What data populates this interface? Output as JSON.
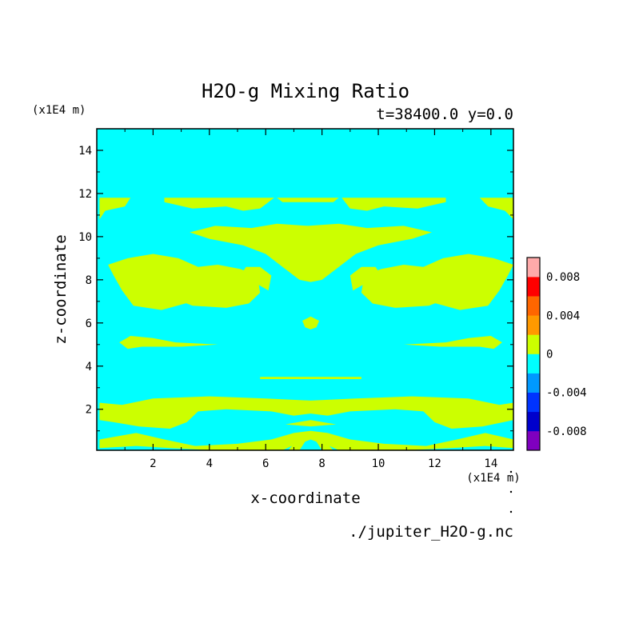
{
  "chart_data": {
    "type": "heatmap",
    "title": "H2O-g Mixing Ratio",
    "subtitle": "t=38400.0 y=0.0",
    "xlabel": "x-coordinate",
    "ylabel": "z-coordinate",
    "x_unit": "(x1E4 m)",
    "y_unit": "(x1E4 m)",
    "source": "./jupiter_H2O-g.nc",
    "xlim": [
      0,
      14.8
    ],
    "ylim": [
      0.1,
      15
    ],
    "x_ticks": [
      2,
      4,
      6,
      8,
      10,
      12,
      14
    ],
    "y_ticks": [
      2,
      4,
      6,
      8,
      10,
      12,
      14
    ],
    "background_level": {
      "range": [
        -0.002,
        0
      ],
      "color": "#00ffff"
    },
    "feature_level": {
      "range": [
        0,
        0.002
      ],
      "color": "#ccff00"
    },
    "regions": [
      {
        "name": "upper-band",
        "polygon": [
          [
            0.1,
            11.8
          ],
          [
            1.2,
            11.8
          ],
          [
            1.0,
            11.4
          ],
          [
            0.3,
            11.2
          ],
          [
            0.1,
            10.8
          ]
        ]
      },
      {
        "name": "upper-band",
        "polygon": [
          [
            2.4,
            11.8
          ],
          [
            6.3,
            11.8
          ],
          [
            5.8,
            11.3
          ],
          [
            5.2,
            11.2
          ],
          [
            4.6,
            11.4
          ],
          [
            3.4,
            11.3
          ],
          [
            2.4,
            11.6
          ]
        ]
      },
      {
        "name": "upper-band",
        "polygon": [
          [
            6.4,
            11.8
          ],
          [
            8.6,
            11.8
          ],
          [
            8.4,
            11.6
          ],
          [
            6.6,
            11.6
          ]
        ]
      },
      {
        "name": "upper-band",
        "polygon": [
          [
            8.7,
            11.8
          ],
          [
            12.4,
            11.8
          ],
          [
            12.4,
            11.6
          ],
          [
            11.4,
            11.3
          ],
          [
            10.2,
            11.4
          ],
          [
            9.6,
            11.2
          ],
          [
            9.0,
            11.3
          ]
        ]
      },
      {
        "name": "upper-band",
        "polygon": [
          [
            13.6,
            11.8
          ],
          [
            14.8,
            11.8
          ],
          [
            14.8,
            10.8
          ],
          [
            14.5,
            11.2
          ],
          [
            13.9,
            11.4
          ]
        ]
      },
      {
        "name": "mid-upper",
        "polygon": [
          [
            3.3,
            10.2
          ],
          [
            4.2,
            10.5
          ],
          [
            5.5,
            10.4
          ],
          [
            6.4,
            10.6
          ],
          [
            7.5,
            10.5
          ],
          [
            8.6,
            10.6
          ],
          [
            9.6,
            10.4
          ],
          [
            10.9,
            10.5
          ],
          [
            11.9,
            10.2
          ],
          [
            11.2,
            9.9
          ],
          [
            10.0,
            9.6
          ],
          [
            9.2,
            9.2
          ],
          [
            8.6,
            8.6
          ],
          [
            8.0,
            8.0
          ],
          [
            7.6,
            7.9
          ],
          [
            7.2,
            8.0
          ],
          [
            6.6,
            8.6
          ],
          [
            6.0,
            9.2
          ],
          [
            5.2,
            9.6
          ],
          [
            4.0,
            9.9
          ]
        ]
      },
      {
        "name": "left-blob",
        "polygon": [
          [
            0.4,
            8.7
          ],
          [
            1.1,
            9.0
          ],
          [
            2.0,
            9.2
          ],
          [
            2.9,
            9.0
          ],
          [
            3.6,
            8.6
          ],
          [
            4.3,
            8.7
          ],
          [
            5.1,
            8.5
          ],
          [
            5.7,
            8.2
          ],
          [
            5.8,
            7.4
          ],
          [
            5.4,
            6.9
          ],
          [
            4.6,
            6.7
          ],
          [
            3.4,
            6.8
          ],
          [
            2.6,
            7.2
          ],
          [
            2.4,
            7.8
          ],
          [
            2.8,
            8.2
          ],
          [
            3.1,
            7.4
          ],
          [
            3.7,
            7.1
          ],
          [
            2.3,
            6.6
          ],
          [
            1.3,
            6.8
          ],
          [
            0.9,
            7.5
          ],
          [
            0.6,
            8.2
          ]
        ]
      },
      {
        "name": "right-blob",
        "polygon": [
          [
            14.8,
            8.7
          ],
          [
            14.1,
            9.0
          ],
          [
            13.2,
            9.2
          ],
          [
            12.3,
            9.0
          ],
          [
            11.6,
            8.6
          ],
          [
            10.9,
            8.7
          ],
          [
            10.1,
            8.5
          ],
          [
            9.5,
            8.2
          ],
          [
            9.4,
            7.4
          ],
          [
            9.8,
            6.9
          ],
          [
            10.6,
            6.7
          ],
          [
            11.8,
            6.8
          ],
          [
            12.6,
            7.2
          ],
          [
            12.8,
            7.8
          ],
          [
            12.4,
            8.2
          ],
          [
            12.1,
            7.4
          ],
          [
            11.5,
            7.1
          ],
          [
            12.9,
            6.6
          ],
          [
            13.9,
            6.8
          ],
          [
            14.3,
            7.5
          ],
          [
            14.6,
            8.2
          ]
        ]
      },
      {
        "name": "left-eddy",
        "polygon": [
          [
            5.0,
            8.0
          ],
          [
            5.3,
            8.6
          ],
          [
            5.8,
            8.6
          ],
          [
            6.2,
            8.2
          ],
          [
            6.1,
            7.5
          ],
          [
            5.7,
            7.8
          ],
          [
            5.6,
            7.4
          ],
          [
            5.2,
            7.5
          ]
        ]
      },
      {
        "name": "right-eddy",
        "polygon": [
          [
            10.2,
            8.0
          ],
          [
            9.9,
            8.6
          ],
          [
            9.4,
            8.6
          ],
          [
            9.0,
            8.2
          ],
          [
            9.1,
            7.5
          ],
          [
            9.5,
            7.8
          ],
          [
            9.6,
            7.4
          ],
          [
            10.0,
            7.5
          ]
        ]
      },
      {
        "name": "center-dot",
        "polygon": [
          [
            7.3,
            6.1
          ],
          [
            7.6,
            6.3
          ],
          [
            7.9,
            6.1
          ],
          [
            7.8,
            5.8
          ],
          [
            7.6,
            5.7
          ],
          [
            7.4,
            5.8
          ]
        ]
      },
      {
        "name": "left-streak",
        "polygon": [
          [
            0.8,
            5.1
          ],
          [
            1.2,
            5.4
          ],
          [
            2.0,
            5.3
          ],
          [
            2.8,
            5.1
          ],
          [
            4.3,
            5.0
          ],
          [
            3.0,
            4.9
          ],
          [
            1.6,
            4.9
          ],
          [
            1.1,
            4.8
          ]
        ]
      },
      {
        "name": "right-streak",
        "polygon": [
          [
            14.4,
            5.1
          ],
          [
            14.0,
            5.4
          ],
          [
            13.2,
            5.3
          ],
          [
            12.4,
            5.1
          ],
          [
            10.9,
            5.0
          ],
          [
            12.2,
            4.9
          ],
          [
            13.6,
            4.9
          ],
          [
            14.1,
            4.8
          ]
        ]
      },
      {
        "name": "thin-line",
        "polygon": [
          [
            5.8,
            3.5
          ],
          [
            9.4,
            3.5
          ],
          [
            9.4,
            3.4
          ],
          [
            5.8,
            3.4
          ]
        ]
      },
      {
        "name": "lower-band",
        "polygon": [
          [
            0.1,
            2.3
          ],
          [
            0.9,
            2.2
          ],
          [
            2.0,
            2.5
          ],
          [
            4.0,
            2.6
          ],
          [
            6.0,
            2.5
          ],
          [
            7.6,
            2.4
          ],
          [
            9.2,
            2.5
          ],
          [
            11.2,
            2.6
          ],
          [
            13.2,
            2.5
          ],
          [
            14.3,
            2.2
          ],
          [
            14.8,
            2.3
          ],
          [
            14.8,
            1.5
          ],
          [
            13.7,
            1.2
          ],
          [
            12.6,
            1.1
          ],
          [
            12.0,
            1.4
          ],
          [
            11.6,
            1.9
          ],
          [
            10.6,
            2.0
          ],
          [
            9.0,
            1.9
          ],
          [
            8.2,
            1.7
          ],
          [
            7.6,
            1.8
          ],
          [
            7.0,
            1.7
          ],
          [
            6.2,
            1.9
          ],
          [
            4.6,
            2.0
          ],
          [
            3.6,
            1.9
          ],
          [
            3.2,
            1.4
          ],
          [
            2.6,
            1.1
          ],
          [
            1.5,
            1.2
          ],
          [
            0.6,
            1.4
          ],
          [
            0.1,
            1.5
          ]
        ]
      },
      {
        "name": "lower-band",
        "polygon": [
          [
            0.1,
            0.6
          ],
          [
            1.4,
            0.9
          ],
          [
            2.4,
            0.6
          ],
          [
            3.5,
            0.3
          ],
          [
            5.0,
            0.4
          ],
          [
            6.2,
            0.6
          ],
          [
            7.0,
            0.9
          ],
          [
            7.6,
            1.0
          ],
          [
            8.2,
            0.9
          ],
          [
            9.0,
            0.6
          ],
          [
            10.2,
            0.4
          ],
          [
            11.7,
            0.3
          ],
          [
            12.8,
            0.6
          ],
          [
            13.8,
            0.9
          ],
          [
            14.8,
            0.6
          ],
          [
            14.8,
            0.2
          ],
          [
            13.8,
            0.3
          ],
          [
            12.6,
            0.2
          ],
          [
            11.0,
            0.1
          ],
          [
            8.6,
            0.1
          ],
          [
            8.1,
            0.4
          ],
          [
            7.6,
            0.6
          ],
          [
            7.1,
            0.4
          ],
          [
            6.6,
            0.1
          ],
          [
            4.2,
            0.1
          ],
          [
            2.6,
            0.2
          ],
          [
            1.4,
            0.3
          ],
          [
            0.1,
            0.2
          ]
        ]
      },
      {
        "name": "lower-band",
        "polygon": [
          [
            6.7,
            1.3
          ],
          [
            7.6,
            1.5
          ],
          [
            8.5,
            1.3
          ],
          [
            7.6,
            1.2
          ]
        ]
      },
      {
        "name": "center-arch",
        "polygon": [
          [
            6.8,
            0.1
          ],
          [
            7.2,
            0.7
          ],
          [
            7.6,
            0.95
          ],
          [
            8.0,
            0.7
          ],
          [
            8.4,
            0.1
          ],
          [
            8.0,
            0.1
          ],
          [
            7.8,
            0.5
          ],
          [
            7.6,
            0.6
          ],
          [
            7.4,
            0.5
          ],
          [
            7.2,
            0.1
          ]
        ]
      }
    ],
    "colorbar": {
      "colors": [
        "#7f00bf",
        "#0000cc",
        "#0033ff",
        "#0099ff",
        "#00ffff",
        "#ccff00",
        "#ff9900",
        "#ff6600",
        "#ff0000",
        "#ffaaaa"
      ],
      "labels": [
        {
          "value": -0.008,
          "text": "-0.008"
        },
        {
          "value": -0.004,
          "text": "-0.004"
        },
        {
          "value": 0,
          "text": "0"
        },
        {
          "value": 0.004,
          "text": "0.004"
        },
        {
          "value": 0.008,
          "text": "0.008"
        }
      ],
      "range": [
        -0.01,
        0.01
      ]
    }
  }
}
